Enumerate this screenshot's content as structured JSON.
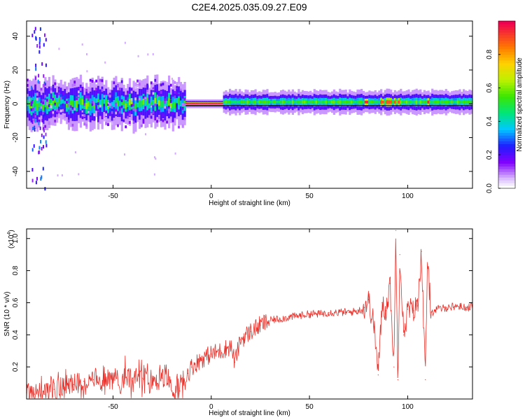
{
  "title": "C2E4.2025.035.09.27.E09",
  "chart_data": [
    {
      "type": "heatmap",
      "name": "spectrogram",
      "title": "C2E4.2025.035.09.27.E09",
      "xlabel": "Height of straight line (km)",
      "ylabel": "Frequency (Hz)",
      "xlim": [
        -94,
        133
      ],
      "ylim": [
        -50,
        49
      ],
      "xticks": [
        -50,
        0,
        50,
        100
      ],
      "yticks": [
        -40,
        -20,
        0,
        20,
        40
      ],
      "colorbar": {
        "label": "Normalized spectral amplitude",
        "range": [
          0.0,
          1.0
        ],
        "ticks": [
          0.0,
          0.2,
          0.4,
          0.6,
          0.8
        ]
      },
      "features": [
        {
          "region": "broadband noisy",
          "x_range": [
            -94,
            -13
          ],
          "band_halfwidth_hz": 5,
          "level": 0.4
        },
        {
          "region": "strong tone",
          "x_range": [
            -13,
            6
          ],
          "freq_hz": 0,
          "level": 1.0
        },
        {
          "region": "steady tone",
          "x_range": [
            6,
            133
          ],
          "freq_hz": 0.5,
          "level": 0.5
        },
        {
          "region": "vertical streak",
          "x_range": [
            -92,
            -84
          ],
          "level": 0.25
        }
      ]
    },
    {
      "type": "line",
      "name": "snr",
      "xlabel": "Height of straight line (km)",
      "ylabel": "SNR (10 * v/v)",
      "scale_note": "(x10",
      "scale_exp": "4",
      "xlim": [
        -94,
        133
      ],
      "ylim": [
        0,
        1.06
      ],
      "xticks": [
        -50,
        0,
        50,
        100
      ],
      "yticks": [
        0.2,
        0.4,
        0.6,
        0.8,
        1.0
      ],
      "series": [
        {
          "name": "SNR",
          "color": "#e8312a",
          "x": [
            -94,
            -90,
            -85,
            -80,
            -75,
            -70,
            -65,
            -60,
            -55,
            -50,
            -45,
            -40,
            -35,
            -30,
            -25,
            -22,
            -20,
            -18,
            -16,
            -14,
            -12,
            -10,
            -5,
            0,
            5,
            10,
            12,
            15,
            20,
            25,
            30,
            35,
            40,
            45,
            50,
            55,
            60,
            65,
            70,
            75,
            78,
            80,
            83,
            85,
            87,
            89,
            91,
            93,
            94,
            95,
            96,
            98,
            100,
            103,
            105,
            107,
            109,
            110,
            112,
            115,
            120,
            125,
            130,
            133
          ],
          "y": [
            0.04,
            0.03,
            0.03,
            0.06,
            0.08,
            0.09,
            0.11,
            0.12,
            0.13,
            0.12,
            0.14,
            0.13,
            0.13,
            0.13,
            0.13,
            0.12,
            0.05,
            0.04,
            0.05,
            0.1,
            0.16,
            0.2,
            0.25,
            0.28,
            0.3,
            0.33,
            0.23,
            0.37,
            0.42,
            0.46,
            0.49,
            0.5,
            0.51,
            0.52,
            0.53,
            0.53,
            0.54,
            0.54,
            0.54,
            0.55,
            0.57,
            0.62,
            0.45,
            0.15,
            0.6,
            0.55,
            0.72,
            0.2,
            1.05,
            0.12,
            0.9,
            0.4,
            0.56,
            0.55,
            0.58,
            0.92,
            0.12,
            0.85,
            0.54,
            0.56,
            0.57,
            0.58,
            0.57,
            0.58
          ]
        }
      ]
    }
  ]
}
